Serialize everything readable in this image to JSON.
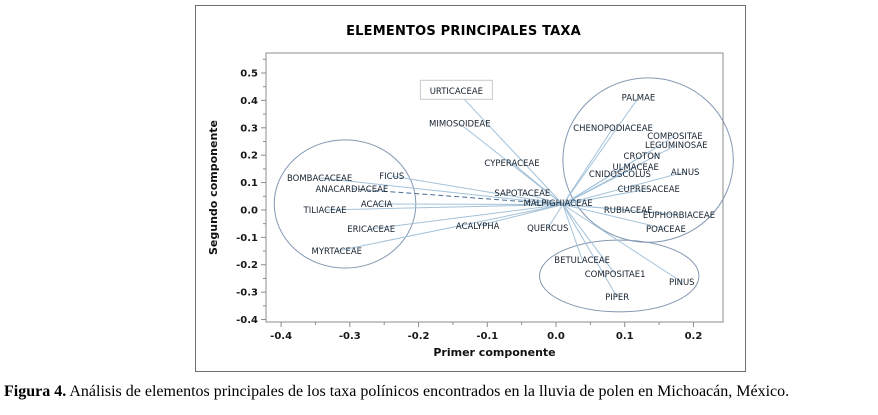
{
  "figure": {
    "caption_label": "Figura 4.",
    "caption_text": " Análisis de elementos principales de los taxa polínicos encontrados en la lluvia de polen en Michoacán, México."
  },
  "chart_data": {
    "type": "scatter",
    "title": "ELEMENTOS PRINCIPALES TAXA",
    "xlabel": "Primer componente",
    "ylabel": "Segundo componente",
    "xlim": [
      -0.422,
      0.243
    ],
    "ylim": [
      -0.409,
      0.573
    ],
    "x_ticks": [
      -0.4,
      -0.3,
      -0.2,
      -0.1,
      0.0,
      0.1,
      0.2
    ],
    "y_ticks": [
      0.5,
      0.4,
      0.3,
      0.2,
      0.1,
      0.0,
      -0.1,
      -0.2,
      -0.3,
      -0.4
    ],
    "minor_tick_step": 0.05,
    "grid": false,
    "legend": "none",
    "origin": {
      "x": 0.01,
      "y": 0.02
    },
    "points": [
      {
        "label": "URTICACEAE",
        "x": -0.145,
        "y": 0.435,
        "boxed": true
      },
      {
        "label": "MIMOSOIDEAE",
        "x": -0.14,
        "y": 0.315
      },
      {
        "label": "CYPERACEAE",
        "x": -0.064,
        "y": 0.172
      },
      {
        "label": "PALMAE",
        "x": 0.12,
        "y": 0.41
      },
      {
        "label": "CHENOPODIACEAE",
        "x": 0.083,
        "y": 0.3
      },
      {
        "label": "COMPOSITAE",
        "x": 0.173,
        "y": 0.27
      },
      {
        "label": "LEGUMINOSAE",
        "x": 0.175,
        "y": 0.237
      },
      {
        "label": "CROTON",
        "x": 0.125,
        "y": 0.197
      },
      {
        "label": "ULMACEAE",
        "x": 0.116,
        "y": 0.157
      },
      {
        "label": "ALNUS",
        "x": 0.188,
        "y": 0.139
      },
      {
        "label": "CNIDOSCOLUS",
        "x": 0.093,
        "y": 0.131
      },
      {
        "label": "CUPRESACEAE",
        "x": 0.135,
        "y": 0.077
      },
      {
        "label": "RUBIACEAE",
        "x": 0.105,
        "y": 0.0
      },
      {
        "label": "EUPHORBIACEAE",
        "x": 0.179,
        "y": -0.018
      },
      {
        "label": "POACEAE",
        "x": 0.16,
        "y": -0.069
      },
      {
        "label": "SAPOTACEAE",
        "x": -0.049,
        "y": 0.062
      },
      {
        "label": "MALPIGHIACEAE",
        "x": 0.003,
        "y": 0.026
      },
      {
        "label": "QUERCUS",
        "x": -0.012,
        "y": -0.066
      },
      {
        "label": "BOMBACACEAE",
        "x": -0.344,
        "y": 0.117
      },
      {
        "label": "FICUS",
        "x": -0.239,
        "y": 0.124
      },
      {
        "label": "ANACARDIACEAE",
        "x": -0.297,
        "y": 0.077,
        "dashed": true
      },
      {
        "label": "ACACIA",
        "x": -0.261,
        "y": 0.022
      },
      {
        "label": "TILIACEAE",
        "x": -0.336,
        "y": 0.0
      },
      {
        "label": "ERICACEAE",
        "x": -0.269,
        "y": -0.069
      },
      {
        "label": "ACALYPHA",
        "x": -0.114,
        "y": -0.058
      },
      {
        "label": "MYRTACEAE",
        "x": -0.319,
        "y": -0.15
      },
      {
        "label": "BETULACEAE",
        "x": 0.038,
        "y": -0.182
      },
      {
        "label": "COMPOSITAE1",
        "x": 0.086,
        "y": -0.234
      },
      {
        "label": "PINUS",
        "x": 0.183,
        "y": -0.263
      },
      {
        "label": "PIPER",
        "x": 0.089,
        "y": -0.318
      }
    ],
    "ellipses": [
      {
        "name": "left-cluster",
        "cx": -0.307,
        "cy": 0.022,
        "rx": 0.103,
        "ry": 0.234
      },
      {
        "name": "right-cluster",
        "cx": 0.134,
        "cy": 0.182,
        "rx": 0.124,
        "ry": 0.3
      },
      {
        "name": "bottom-cluster",
        "cx": 0.092,
        "cy": -0.241,
        "rx": 0.116,
        "ry": 0.131
      }
    ],
    "colors": {
      "vector": "#a3c2da",
      "vector_dashed": "#4a6f96",
      "ellipse": "#8498b1",
      "taxon_label": "#16222e",
      "axis": "#8c8c8c",
      "tick_label": "#191919",
      "boxed_label_border": "#c9c9c9"
    }
  }
}
